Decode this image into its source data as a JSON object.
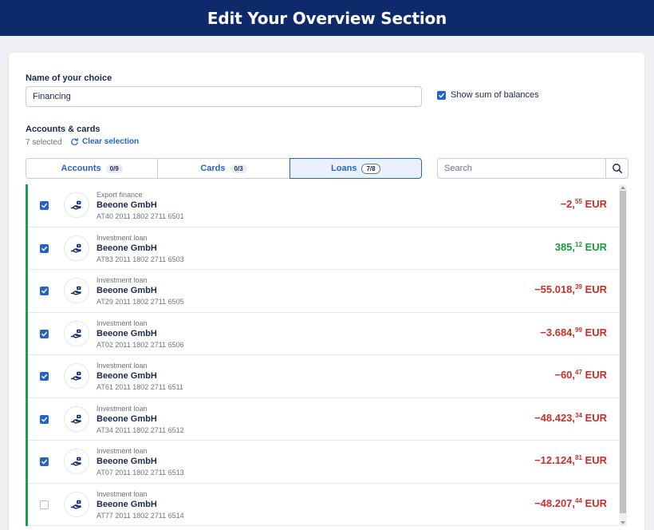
{
  "header": {
    "title": "Edit Your Overview Section"
  },
  "form": {
    "name_label": "Name of your choice",
    "name_value": "Financing",
    "show_sum_label": "Show sum of balances",
    "show_sum_checked": true
  },
  "accounts": {
    "section_label": "Accounts & cards",
    "selected_text": "7 selected",
    "clear_label": "Clear selection"
  },
  "tabs": [
    {
      "label": "Accounts",
      "badge": "0/9",
      "active": false
    },
    {
      "label": "Cards",
      "badge": "0/3",
      "active": false
    },
    {
      "label": "Loans",
      "badge": "7/8",
      "active": true
    }
  ],
  "search": {
    "placeholder": "Search"
  },
  "colors": {
    "header": "#0e2a6b",
    "accent": "#2563c7",
    "negative": "#c9302c",
    "positive": "#1a9c3b",
    "selected_bar": "#1a9c5b"
  },
  "rows": [
    {
      "checked": true,
      "type": "Export finance",
      "holder": "Beeone GmbH",
      "iban": "AT40 2011 1802 2711 6501",
      "sign": "−",
      "int": "2",
      "dec": "55",
      "currency": "EUR",
      "positive": false,
      "icon": "loan-hand-icon"
    },
    {
      "checked": true,
      "type": "Investment loan",
      "holder": "Beeone GmbH",
      "iban": "AT83 2011 1802 2711 6503",
      "sign": "",
      "int": "385",
      "dec": "12",
      "currency": "EUR",
      "positive": true,
      "icon": "loan-hand-icon"
    },
    {
      "checked": true,
      "type": "Investment loan",
      "holder": "Beeone GmbH",
      "iban": "AT29 2011 1802 2711 6505",
      "sign": "−",
      "int": "55.018",
      "dec": "39",
      "currency": "EUR",
      "positive": false,
      "icon": "loan-hand-icon"
    },
    {
      "checked": true,
      "type": "Investment loan",
      "holder": "Beeone GmbH",
      "iban": "AT02 2011 1802 2711 6506",
      "sign": "−",
      "int": "3.684",
      "dec": "99",
      "currency": "EUR",
      "positive": false,
      "icon": "loan-hand-icon"
    },
    {
      "checked": true,
      "type": "Investment loan",
      "holder": "Beeone GmbH",
      "iban": "AT61 2011 1802 2711 6511",
      "sign": "−",
      "int": "60",
      "dec": "47",
      "currency": "EUR",
      "positive": false,
      "icon": "loan-hand-icon"
    },
    {
      "checked": true,
      "type": "Investment loan",
      "holder": "Beeone GmbH",
      "iban": "AT34 2011 1802 2711 6512",
      "sign": "−",
      "int": "48.423",
      "dec": "34",
      "currency": "EUR",
      "positive": false,
      "icon": "loan-hand-icon"
    },
    {
      "checked": true,
      "type": "Investment loan",
      "holder": "Beeone GmbH",
      "iban": "AT07 2011 1802 2711 6513",
      "sign": "−",
      "int": "12.124",
      "dec": "81",
      "currency": "EUR",
      "positive": false,
      "icon": "loan-hand-icon"
    },
    {
      "checked": false,
      "type": "Investment loan",
      "holder": "Beeone GmbH",
      "iban": "AT77 2011 1802 2711 6514",
      "sign": "−",
      "int": "48.207",
      "dec": "44",
      "currency": "EUR",
      "positive": false,
      "icon": "loan-hand-icon"
    }
  ]
}
